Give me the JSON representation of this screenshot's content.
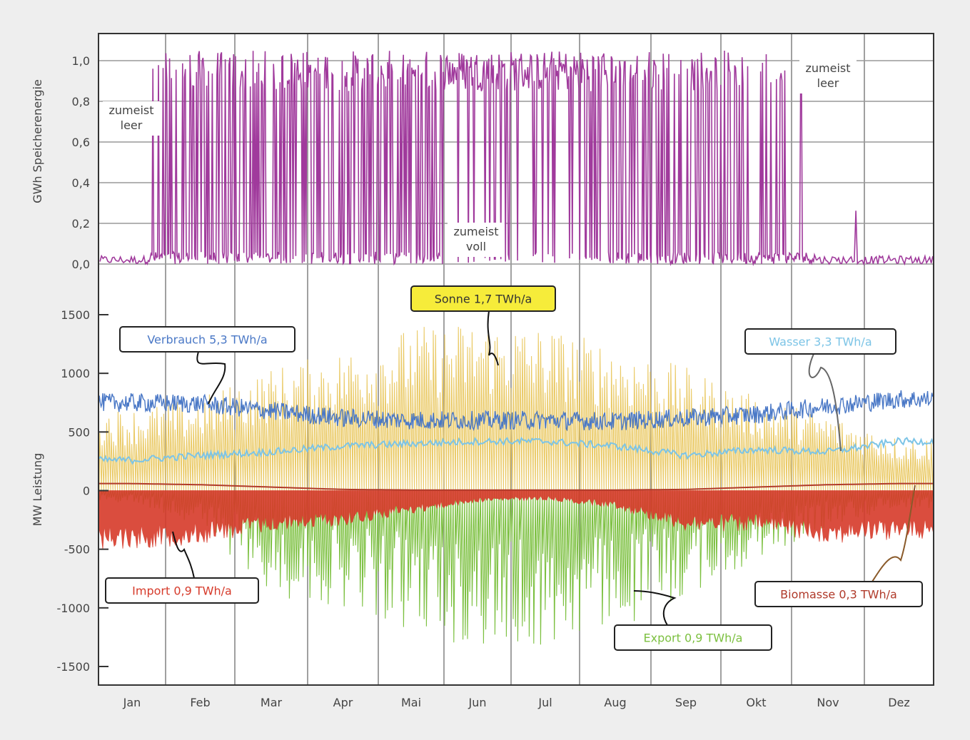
{
  "chart_data": {
    "type": "line",
    "months": [
      "Jan",
      "Feb",
      "Mar",
      "Apr",
      "Mai",
      "Jun",
      "Jul",
      "Aug",
      "Sep",
      "Okt",
      "Nov",
      "Dez"
    ],
    "storage_panel": {
      "ylabel": "GWh Speicherenergie",
      "ylim": [
        0,
        1.1
      ],
      "yticks": [
        "0,0",
        "0,2",
        "0,4",
        "0,6",
        "0,8",
        "1,0"
      ],
      "ytick_values": [
        0,
        0.2,
        0.4,
        0.6,
        0.8,
        1.0
      ],
      "series_color": "#a03a9c",
      "monthly_mean_level": [
        0.02,
        0.45,
        0.5,
        0.55,
        0.65,
        0.8,
        0.9,
        0.55,
        0.45,
        0.4,
        0.05,
        0.05
      ],
      "annotations": [
        {
          "text": [
            "zumeist",
            "leer"
          ],
          "month": "Jan"
        },
        {
          "text": [
            "zumeist",
            "voll"
          ],
          "month": "Jun"
        },
        {
          "text": [
            "zumeist",
            "leer"
          ],
          "month": "Nov"
        }
      ]
    },
    "power_panel": {
      "ylabel": "MW Leistung",
      "ylim": [
        -1650,
        1500
      ],
      "yticks": [
        "1500",
        "1000",
        "500",
        "0",
        "-500",
        "-1000",
        "-1500"
      ],
      "ytick_values": [
        1500,
        1000,
        500,
        0,
        -500,
        -1000,
        -1500
      ],
      "series": [
        {
          "name": "Sonne 1,7 TWh/a",
          "color": "#e8c456",
          "box_color": "#f6ec3a",
          "monthly_peak": [
            700,
            800,
            1050,
            1200,
            1400,
            1450,
            1400,
            1250,
            1050,
            800,
            650,
            450
          ]
        },
        {
          "name": "Verbrauch 5,3 TWh/a",
          "color": "#4a78c6",
          "monthly_mean": [
            750,
            740,
            680,
            620,
            600,
            600,
            600,
            590,
            620,
            650,
            720,
            780
          ]
        },
        {
          "name": "Wasser 3,3 TWh/a",
          "color": "#7cc4e6",
          "monthly_mean": [
            260,
            300,
            330,
            380,
            400,
            420,
            420,
            380,
            300,
            350,
            330,
            420
          ]
        },
        {
          "name": "Import 0,9 TWh/a",
          "color": "#d63a2a",
          "monthly_min": [
            -500,
            -460,
            -350,
            -300,
            -200,
            -100,
            -80,
            -150,
            -350,
            -350,
            -450,
            -420
          ]
        },
        {
          "name": "Export 0,9 TWh/a",
          "color": "#7cc040",
          "monthly_min": [
            -100,
            -300,
            -900,
            -1000,
            -1200,
            -1350,
            -1350,
            -1200,
            -900,
            -600,
            -300,
            -150
          ]
        },
        {
          "name": "Biomasse 0,3 TWh/a",
          "color": "#b03a2a",
          "monthly_mean": [
            60,
            50,
            30,
            10,
            5,
            5,
            5,
            5,
            10,
            30,
            50,
            60
          ]
        }
      ]
    }
  }
}
